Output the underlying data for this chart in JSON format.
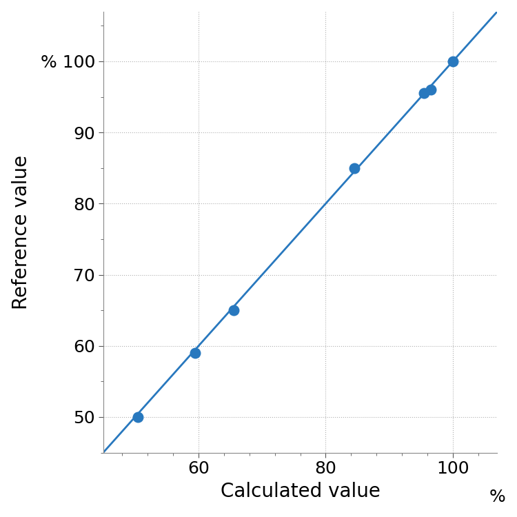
{
  "scatter_x": [
    50.5,
    59.5,
    65.5,
    84.5,
    95.5,
    96.5,
    100.0
  ],
  "scatter_y": [
    50.0,
    59.0,
    65.0,
    85.0,
    95.5,
    96.0,
    100.0
  ],
  "line_x": [
    45,
    107
  ],
  "line_y": [
    45,
    107
  ],
  "xlim": [
    45,
    107
  ],
  "ylim": [
    45,
    107
  ],
  "xticks": [
    60,
    80,
    100
  ],
  "yticks": [
    50,
    60,
    70,
    80,
    90,
    100
  ],
  "xlabel": "Calculated value",
  "ylabel": "Reference value",
  "xlabel_unit": "%",
  "ylabel_unit": "%",
  "line_color": "#2878be",
  "dot_color": "#2878be",
  "dot_size": 100,
  "dot_linewidth": 1.5,
  "line_width": 2.0,
  "background_color": "#ffffff",
  "grid_color": "#b0b0b0",
  "xlabel_fontsize": 20,
  "ylabel_fontsize": 20,
  "tick_fontsize": 18
}
